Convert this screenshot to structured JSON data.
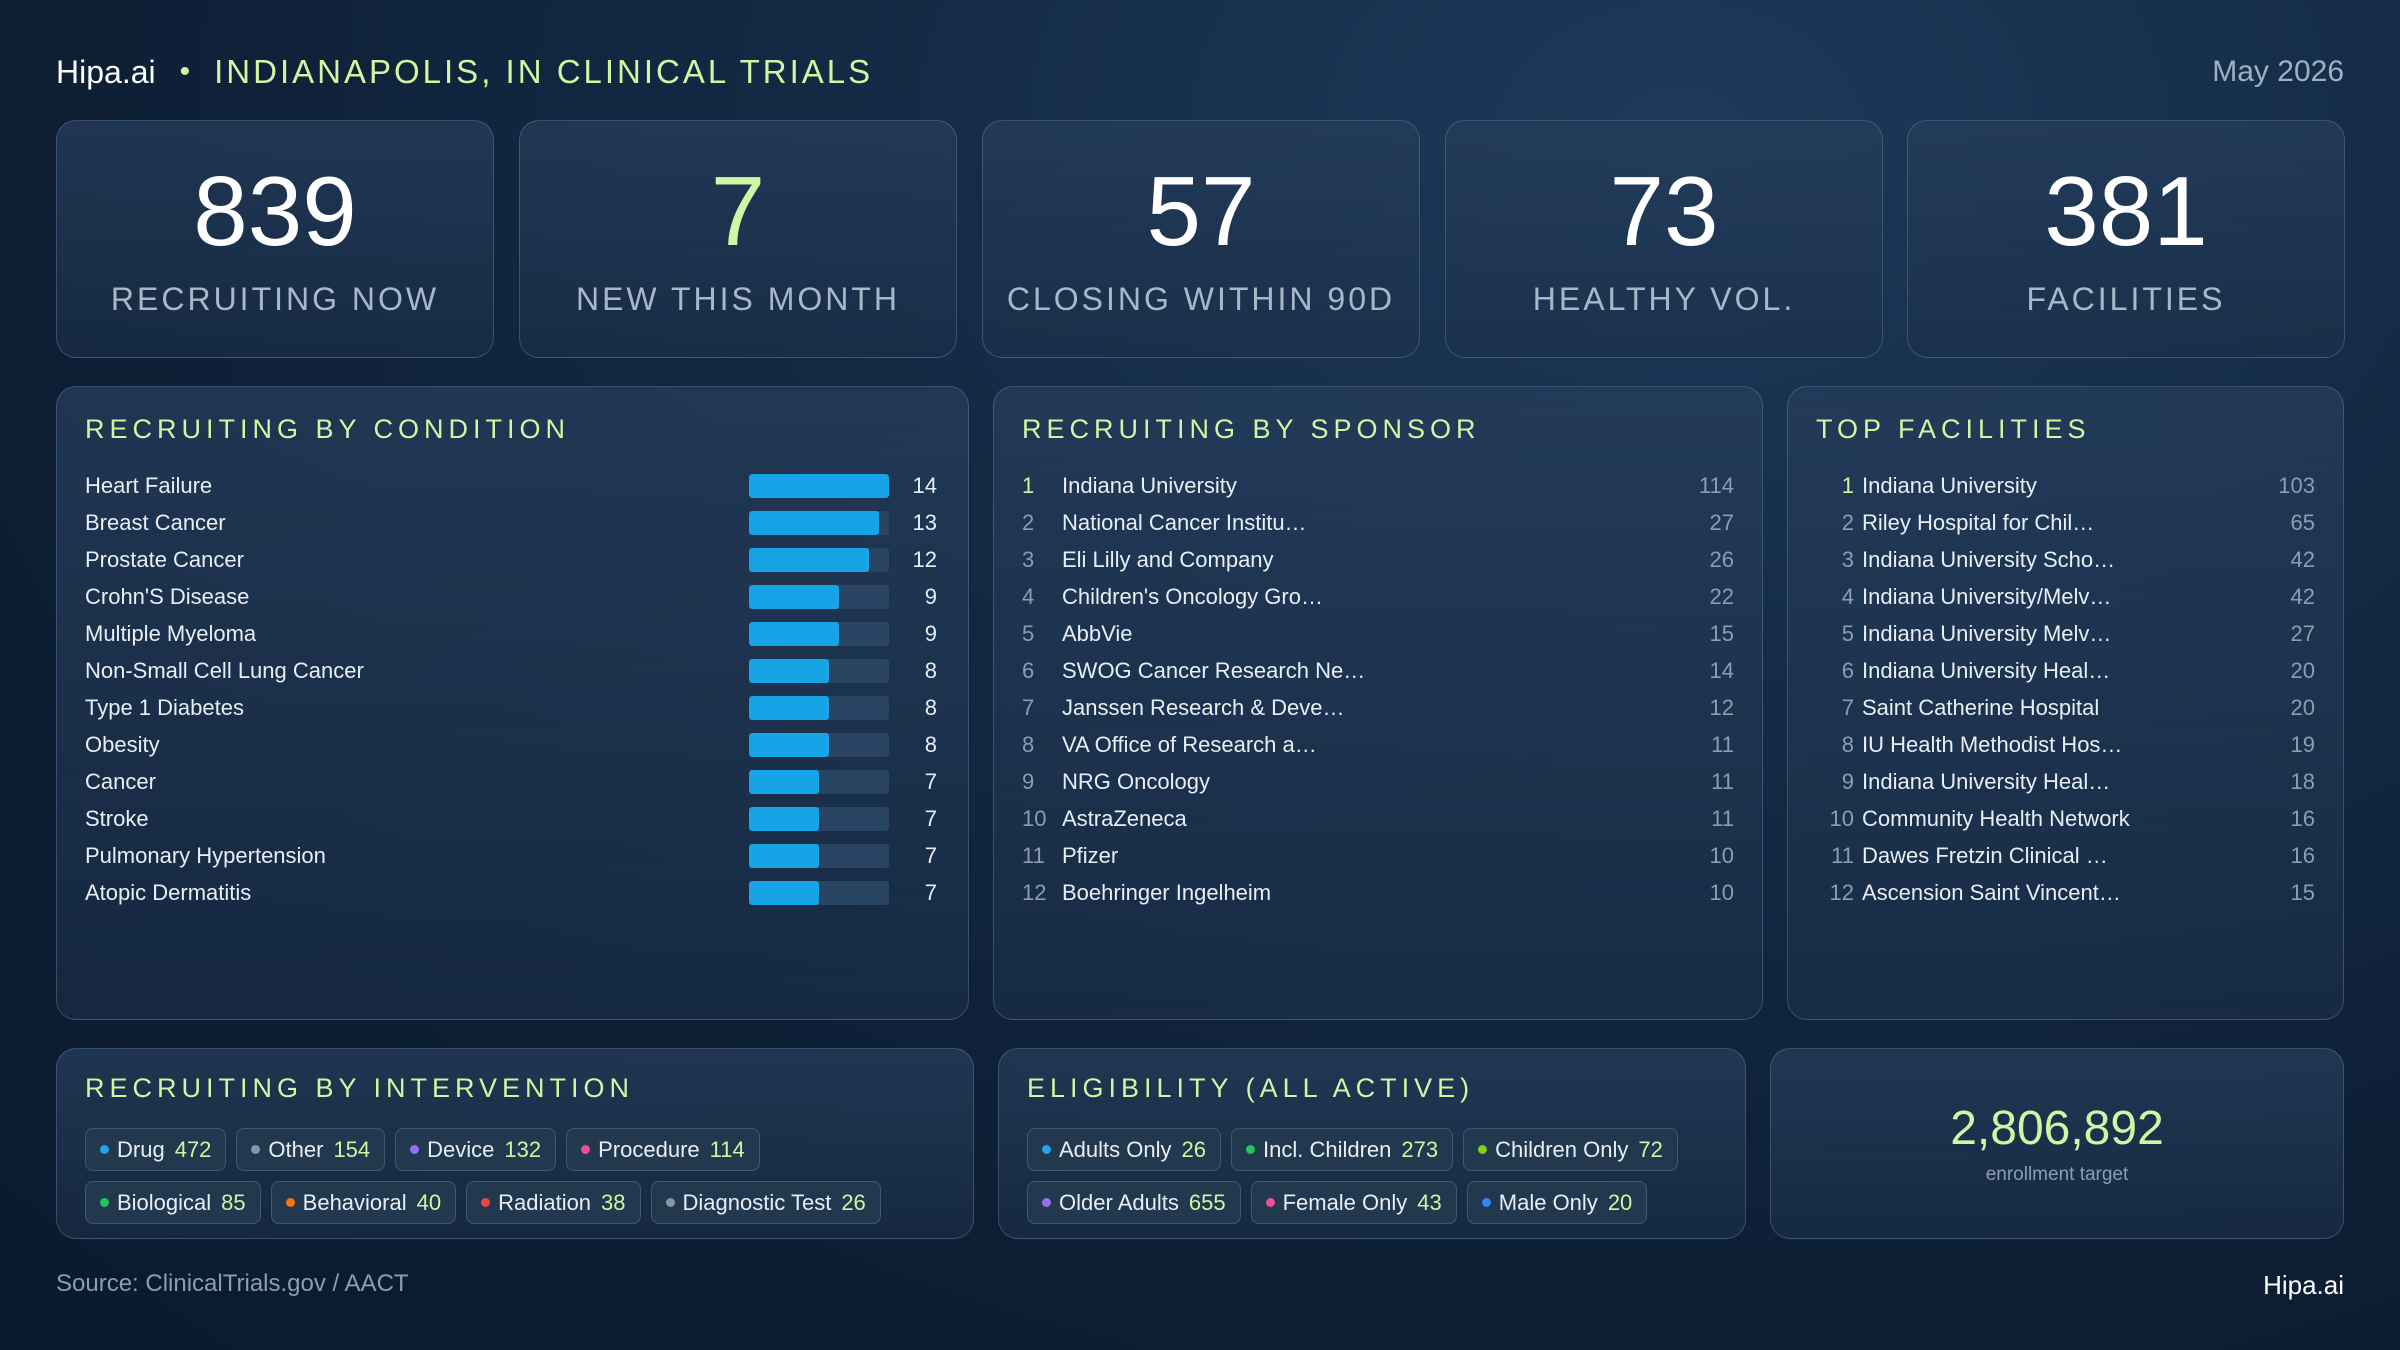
{
  "header": {
    "brand": "Hipa.ai",
    "separator": "•",
    "title": "INDIANAPOLIS, IN CLINICAL TRIALS",
    "date": "May 2026"
  },
  "stats": [
    {
      "value": "839",
      "label": "RECRUITING NOW"
    },
    {
      "value": "7",
      "label": "NEW THIS MONTH"
    },
    {
      "value": "57",
      "label": "CLOSING WITHIN 90D"
    },
    {
      "value": "73",
      "label": "HEALTHY VOL."
    },
    {
      "value": "381",
      "label": "FACILITIES"
    }
  ],
  "conditions": {
    "title": "RECRUITING BY CONDITION",
    "items": [
      {
        "name": "Heart Failure",
        "value": "14"
      },
      {
        "name": "Breast Cancer",
        "value": "13"
      },
      {
        "name": "Prostate Cancer",
        "value": "12"
      },
      {
        "name": "Crohn'S Disease",
        "value": "9"
      },
      {
        "name": "Multiple Myeloma",
        "value": "9"
      },
      {
        "name": "Non-Small Cell Lung Cancer",
        "value": "8"
      },
      {
        "name": "Type 1 Diabetes",
        "value": "8"
      },
      {
        "name": "Obesity",
        "value": "8"
      },
      {
        "name": "Cancer",
        "value": "7"
      },
      {
        "name": "Stroke",
        "value": "7"
      },
      {
        "name": "Pulmonary Hypertension",
        "value": "7"
      },
      {
        "name": "Atopic Dermatitis",
        "value": "7"
      }
    ]
  },
  "sponsors": {
    "title": "RECRUITING BY SPONSOR",
    "items": [
      {
        "rank": "1",
        "name": "Indiana University",
        "value": "114"
      },
      {
        "rank": "2",
        "name": "National Cancer Institu…",
        "value": "27"
      },
      {
        "rank": "3",
        "name": "Eli Lilly and Company",
        "value": "26"
      },
      {
        "rank": "4",
        "name": "Children's Oncology Gro…",
        "value": "22"
      },
      {
        "rank": "5",
        "name": "AbbVie",
        "value": "15"
      },
      {
        "rank": "6",
        "name": "SWOG Cancer Research Ne…",
        "value": "14"
      },
      {
        "rank": "7",
        "name": "Janssen Research & Deve…",
        "value": "12"
      },
      {
        "rank": "8",
        "name": "VA Office of Research a…",
        "value": "11"
      },
      {
        "rank": "9",
        "name": "NRG Oncology",
        "value": "11"
      },
      {
        "rank": "10",
        "name": "AstraZeneca",
        "value": "11"
      },
      {
        "rank": "11",
        "name": "Pfizer",
        "value": "10"
      },
      {
        "rank": "12",
        "name": "Boehringer Ingelheim",
        "value": "10"
      }
    ]
  },
  "facilities": {
    "title": "TOP FACILITIES",
    "items": [
      {
        "rank": "1",
        "name": "Indiana University",
        "value": "103"
      },
      {
        "rank": "2",
        "name": "Riley Hospital for Chil…",
        "value": "65"
      },
      {
        "rank": "3",
        "name": "Indiana University Scho…",
        "value": "42"
      },
      {
        "rank": "4",
        "name": "Indiana University/Melv…",
        "value": "42"
      },
      {
        "rank": "5",
        "name": "Indiana University Melv…",
        "value": "27"
      },
      {
        "rank": "6",
        "name": "Indiana University Heal…",
        "value": "20"
      },
      {
        "rank": "7",
        "name": "Saint Catherine Hospital",
        "value": "20"
      },
      {
        "rank": "8",
        "name": "IU Health Methodist Hos…",
        "value": "19"
      },
      {
        "rank": "9",
        "name": "Indiana University Heal…",
        "value": "18"
      },
      {
        "rank": "10",
        "name": "Community Health Network",
        "value": "16"
      },
      {
        "rank": "11",
        "name": "Dawes Fretzin Clinical …",
        "value": "16"
      },
      {
        "rank": "12",
        "name": "Ascension Saint Vincent…",
        "value": "15"
      }
    ]
  },
  "interventions": {
    "title": "RECRUITING BY INTERVENTION",
    "items": [
      {
        "name": "Drug",
        "value": "472",
        "color": "#1ea7e8"
      },
      {
        "name": "Other",
        "value": "154",
        "color": "#8a95a3"
      },
      {
        "name": "Device",
        "value": "132",
        "color": "#9b6bef"
      },
      {
        "name": "Procedure",
        "value": "114",
        "color": "#ec4f9a"
      },
      {
        "name": "Biological",
        "value": "85",
        "color": "#22c55e"
      },
      {
        "name": "Behavioral",
        "value": "40",
        "color": "#f97316"
      },
      {
        "name": "Radiation",
        "value": "38",
        "color": "#ef4444"
      },
      {
        "name": "Diagnostic Test",
        "value": "26",
        "color": "#8a95a3"
      }
    ]
  },
  "eligibility": {
    "title": "ELIGIBILITY (ALL ACTIVE)",
    "items": [
      {
        "name": "Adults Only",
        "value": "26",
        "color": "#1ea7e8"
      },
      {
        "name": "Incl. Children",
        "value": "273",
        "color": "#22c55e"
      },
      {
        "name": "Children Only",
        "value": "72",
        "color": "#84cc16"
      },
      {
        "name": "Older Adults",
        "value": "655",
        "color": "#9b6bef"
      },
      {
        "name": "Female Only",
        "value": "43",
        "color": "#ec4f9a"
      },
      {
        "name": "Male Only",
        "value": "20",
        "color": "#3b82f6"
      }
    ]
  },
  "enrollment": {
    "value": "2,806,892",
    "label": "enrollment target"
  },
  "footer": {
    "source": "Source: ClinicalTrials.gov / AACT",
    "brand": "Hipa.ai"
  }
}
